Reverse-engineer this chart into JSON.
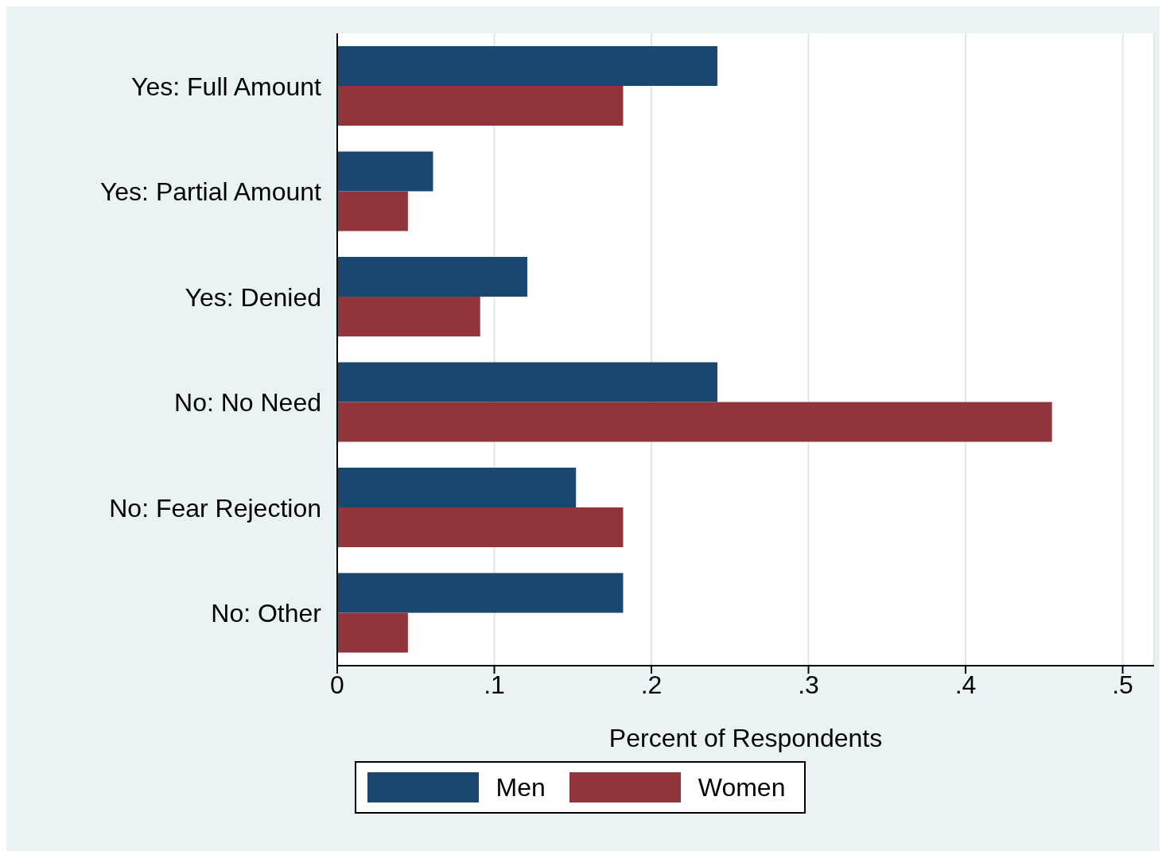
{
  "chart_data": {
    "type": "bar",
    "orientation": "horizontal",
    "xlabel": "Percent of Respondents",
    "categories": [
      "Yes: Full Amount",
      "Yes: Partial Amount",
      "Yes: Denied",
      "No: No Need",
      "No: Fear Rejection",
      "No: Other"
    ],
    "series": [
      {
        "name": "Men",
        "color": "#1a476f",
        "values": [
          0.242,
          0.061,
          0.121,
          0.242,
          0.152,
          0.182
        ]
      },
      {
        "name": "Women",
        "color": "#90353b",
        "values": [
          0.182,
          0.045,
          0.091,
          0.455,
          0.182,
          0.045
        ]
      }
    ],
    "xlim": [
      0,
      0.52
    ],
    "xticks": [
      0,
      {
        "value": 0.1,
        "label": ".1"
      },
      {
        "value": 0.2,
        "label": ".2"
      },
      {
        "value": 0.3,
        "label": ".3"
      },
      {
        "value": 0.4,
        "label": ".4"
      },
      {
        "value": 0.5,
        "label": ".5"
      }
    ],
    "grid": "x",
    "legend": "bottom"
  }
}
